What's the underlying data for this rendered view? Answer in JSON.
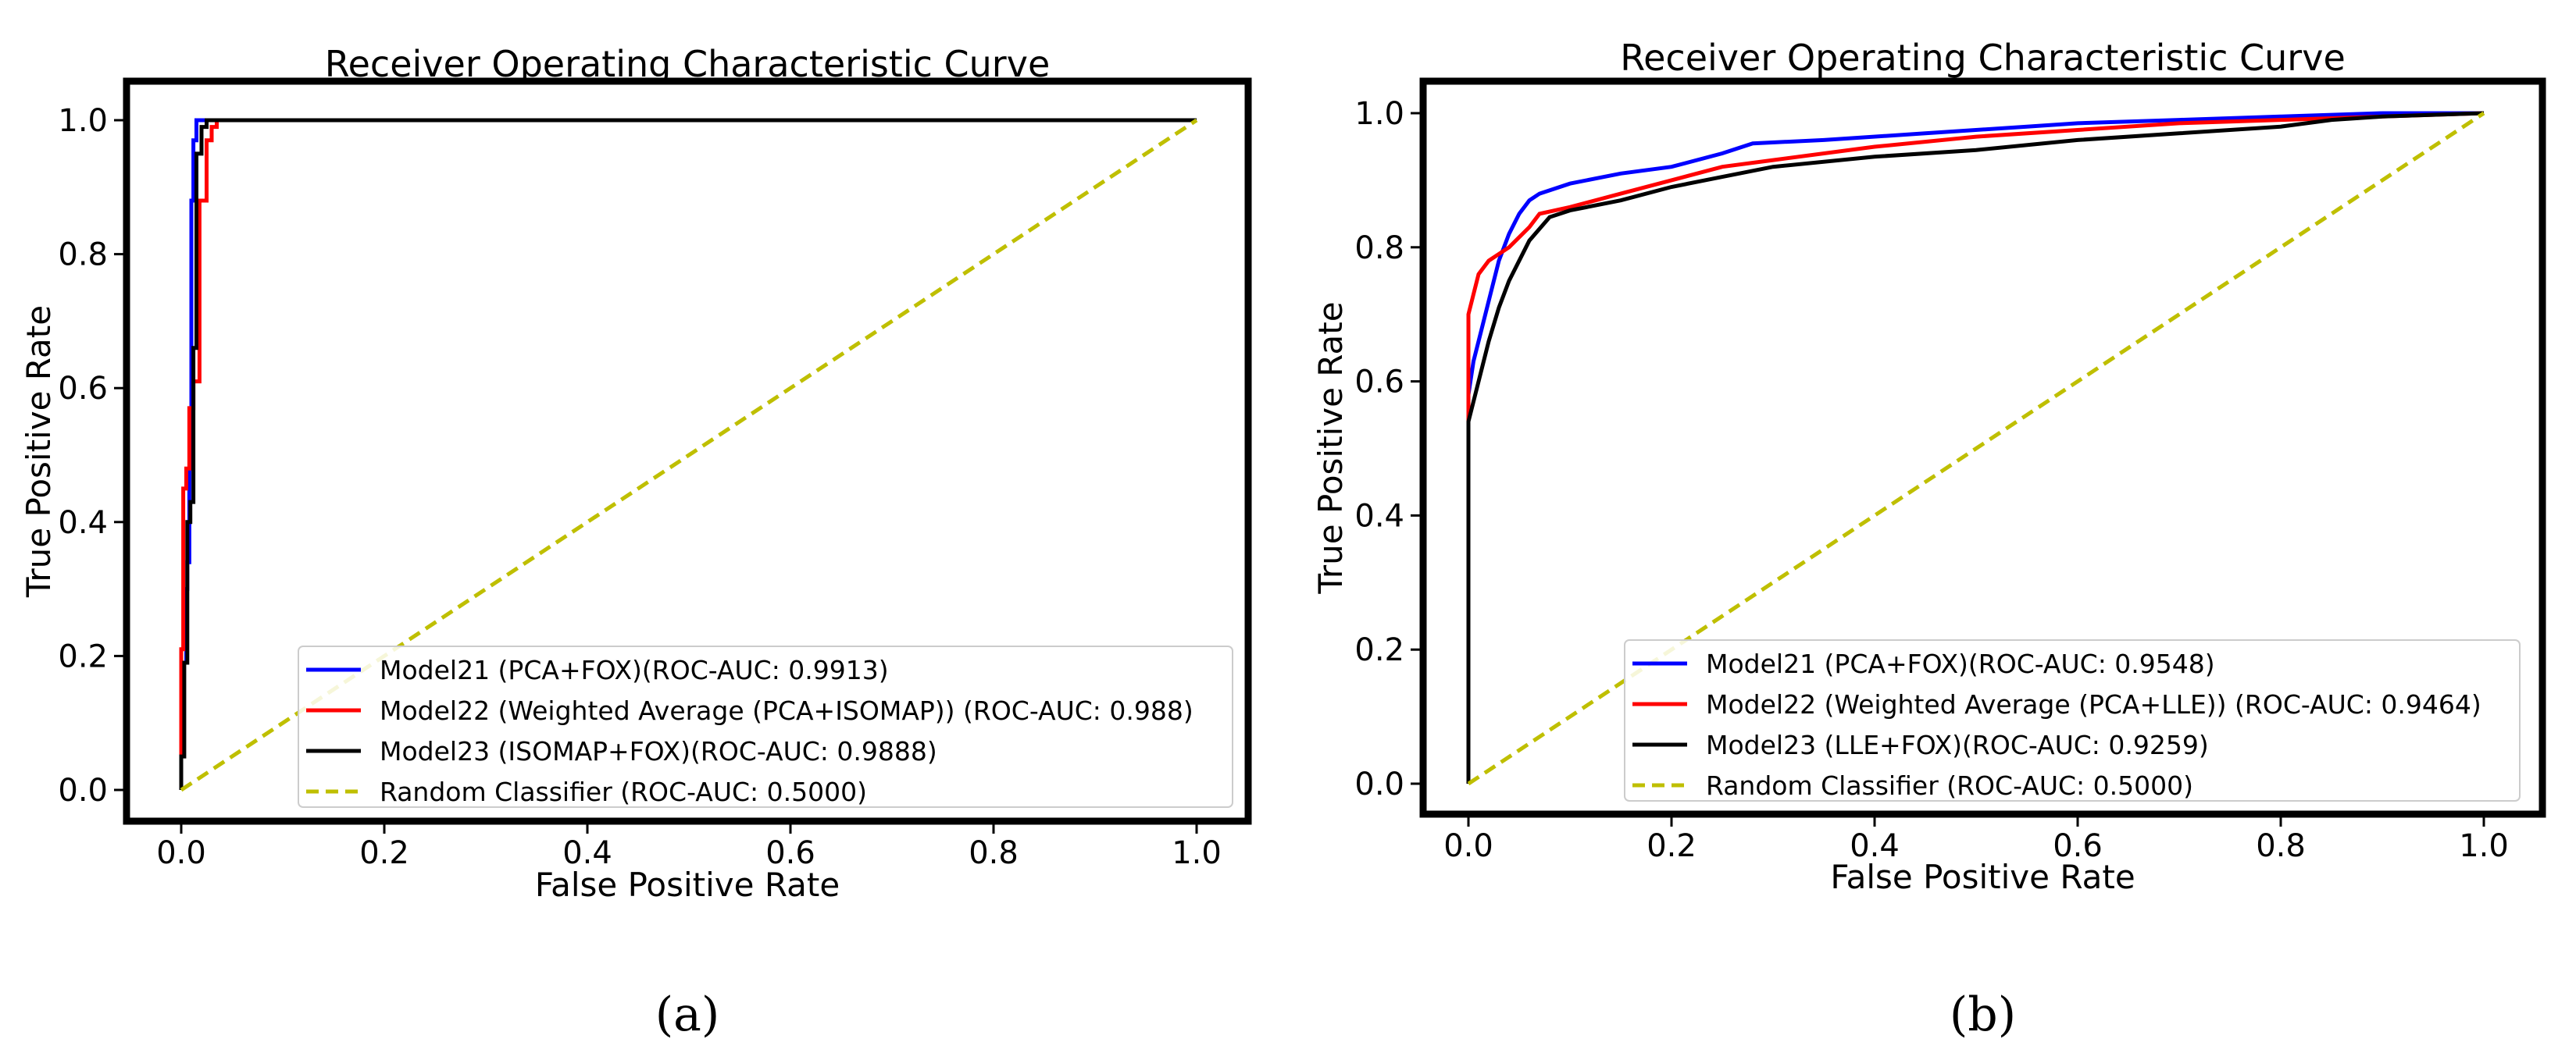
{
  "chart_data": [
    {
      "type": "line",
      "title": "Receiver Operating Characteristic Curve",
      "xlabel": "False Positive Rate",
      "ylabel": "True Positive Rate",
      "xlim": [
        0,
        1
      ],
      "ylim": [
        0,
        1
      ],
      "xticks": [
        "0.0",
        "0.2",
        "0.4",
        "0.6",
        "0.8",
        "1.0"
      ],
      "yticks": [
        "0.0",
        "0.2",
        "0.4",
        "0.6",
        "0.8",
        "1.0"
      ],
      "grid": false,
      "legend_position": "lower-right",
      "caption": "(a)",
      "series": [
        {
          "name": "Model21 (PCA+FOX)(ROC-AUC: 0.9913)",
          "color": "#0000ff",
          "x": [
            0,
            0,
            0.002,
            0.002,
            0.005,
            0.005,
            0.006,
            0.006,
            0.008,
            0.008,
            0.01,
            0.01,
            0.012,
            0.012,
            0.015,
            0.015,
            0.03,
            0.06
          ],
          "y": [
            0,
            0.1,
            0.1,
            0.19,
            0.19,
            0.3,
            0.3,
            0.34,
            0.34,
            0.48,
            0.48,
            0.88,
            0.88,
            0.97,
            0.97,
            1.0,
            1.0,
            1.0
          ]
        },
        {
          "name": "Model22 (Weighted Average (PCA+ISOMAP)) (ROC-AUC: 0.988)",
          "color": "#ff0000",
          "x": [
            0,
            0,
            0.002,
            0.002,
            0.005,
            0.005,
            0.008,
            0.008,
            0.012,
            0.012,
            0.018,
            0.018,
            0.025,
            0.025,
            0.03,
            0.03,
            0.035,
            0.035,
            0.05
          ],
          "y": [
            0,
            0.21,
            0.21,
            0.45,
            0.45,
            0.48,
            0.48,
            0.57,
            0.57,
            0.61,
            0.61,
            0.88,
            0.88,
            0.97,
            0.97,
            0.99,
            0.99,
            1.0,
            1.0
          ]
        },
        {
          "name": "Model23 (ISOMAP+FOX)(ROC-AUC: 0.9888)",
          "color": "#000000",
          "x": [
            0,
            0,
            0.003,
            0.003,
            0.006,
            0.006,
            0.009,
            0.009,
            0.012,
            0.012,
            0.015,
            0.015,
            0.02,
            0.02,
            0.025,
            0.025,
            0.04,
            1.0
          ],
          "y": [
            0,
            0.05,
            0.05,
            0.19,
            0.19,
            0.4,
            0.4,
            0.43,
            0.43,
            0.66,
            0.66,
            0.95,
            0.95,
            0.99,
            0.99,
            1.0,
            1.0,
            1.0
          ]
        },
        {
          "name": "Random Classifier (ROC-AUC: 0.5000)",
          "color": "#bfbf00",
          "dashed": true,
          "x": [
            0,
            1
          ],
          "y": [
            0,
            1
          ]
        }
      ]
    },
    {
      "type": "line",
      "title": "Receiver Operating Characteristic Curve",
      "xlabel": "False Positive Rate",
      "ylabel": "True Positive Rate",
      "xlim": [
        0,
        1
      ],
      "ylim": [
        0,
        1
      ],
      "xticks": [
        "0.0",
        "0.2",
        "0.4",
        "0.6",
        "0.8",
        "1.0"
      ],
      "yticks": [
        "0.0",
        "0.2",
        "0.4",
        "0.6",
        "0.8",
        "1.0"
      ],
      "grid": false,
      "legend_position": "lower-right",
      "caption": "(b)",
      "series": [
        {
          "name": "Model21 (PCA+FOX)(ROC-AUC: 0.9548)",
          "color": "#0000ff",
          "x": [
            0,
            0,
            0.005,
            0.01,
            0.02,
            0.03,
            0.04,
            0.05,
            0.06,
            0.07,
            0.1,
            0.15,
            0.2,
            0.25,
            0.28,
            0.35,
            0.45,
            0.55,
            0.6,
            0.7,
            0.8,
            0.9,
            1.0
          ],
          "y": [
            0,
            0.58,
            0.63,
            0.66,
            0.72,
            0.78,
            0.82,
            0.85,
            0.87,
            0.88,
            0.895,
            0.91,
            0.92,
            0.94,
            0.955,
            0.96,
            0.97,
            0.98,
            0.985,
            0.99,
            0.995,
            1.0,
            1.0
          ]
        },
        {
          "name": "Model22 (Weighted Average (PCA+LLE)) (ROC-AUC: 0.9464)",
          "color": "#ff0000",
          "x": [
            0,
            0,
            0.005,
            0.01,
            0.02,
            0.04,
            0.06,
            0.07,
            0.1,
            0.15,
            0.2,
            0.25,
            0.3,
            0.4,
            0.5,
            0.6,
            0.7,
            0.8,
            0.9,
            1.0
          ],
          "y": [
            0,
            0.7,
            0.73,
            0.76,
            0.78,
            0.8,
            0.83,
            0.85,
            0.86,
            0.88,
            0.9,
            0.92,
            0.93,
            0.95,
            0.965,
            0.975,
            0.985,
            0.99,
            0.995,
            1.0
          ]
        },
        {
          "name": "Model23 (LLE+FOX)(ROC-AUC: 0.9259)",
          "color": "#000000",
          "x": [
            0,
            0,
            0.005,
            0.01,
            0.02,
            0.03,
            0.04,
            0.06,
            0.08,
            0.1,
            0.15,
            0.2,
            0.25,
            0.3,
            0.4,
            0.5,
            0.6,
            0.7,
            0.8,
            0.85,
            0.9,
            1.0
          ],
          "y": [
            0,
            0.54,
            0.57,
            0.6,
            0.66,
            0.71,
            0.75,
            0.81,
            0.845,
            0.855,
            0.87,
            0.89,
            0.905,
            0.92,
            0.935,
            0.945,
            0.96,
            0.97,
            0.98,
            0.99,
            0.995,
            1.0
          ]
        },
        {
          "name": "Random Classifier (ROC-AUC: 0.5000)",
          "color": "#bfbf00",
          "dashed": true,
          "x": [
            0,
            1
          ],
          "y": [
            0,
            1
          ]
        }
      ]
    }
  ]
}
